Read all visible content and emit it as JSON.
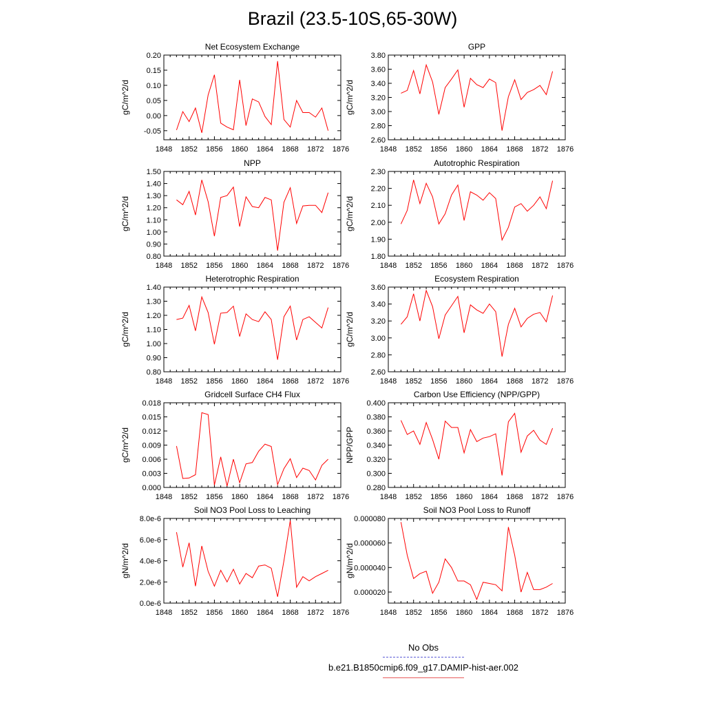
{
  "title": "Brazil (23.5-10S,65-30W)",
  "line_color": "#ff0000",
  "chart_data": [
    {
      "type": "line",
      "title": "Net Ecosystem Exchange",
      "ylabel": "gC/m^2/d",
      "xlim": [
        1848,
        1876
      ],
      "ylim": [
        -0.08,
        0.2
      ],
      "xticks": [
        "1848",
        "1852",
        "1856",
        "1860",
        "1864",
        "1868",
        "1872",
        "1876"
      ],
      "yticks": [
        "-0.05",
        "0.00",
        "0.05",
        "0.10",
        "0.15",
        "0.20"
      ],
      "ytick_values": [
        -0.05,
        0.0,
        0.05,
        0.1,
        0.15,
        0.2
      ],
      "x": [
        1850,
        1851,
        1852,
        1853,
        1854,
        1855,
        1856,
        1857,
        1858,
        1859,
        1860,
        1861,
        1862,
        1863,
        1864,
        1865,
        1866,
        1867,
        1868,
        1869,
        1870,
        1871,
        1872,
        1873,
        1874
      ],
      "values": [
        -0.048,
        0.013,
        -0.02,
        0.025,
        -0.057,
        0.068,
        0.135,
        -0.025,
        -0.038,
        -0.047,
        0.118,
        -0.033,
        0.055,
        0.045,
        -0.003,
        -0.03,
        0.18,
        -0.013,
        -0.038,
        0.05,
        0.01,
        0.01,
        -0.005,
        0.025,
        -0.05
      ]
    },
    {
      "type": "line",
      "title": "GPP",
      "ylabel": "gC/m^2/d",
      "xlim": [
        1848,
        1876
      ],
      "ylim": [
        2.6,
        3.8
      ],
      "xticks": [
        "1848",
        "1852",
        "1856",
        "1860",
        "1864",
        "1868",
        "1872",
        "1876"
      ],
      "yticks": [
        "2.60",
        "2.80",
        "3.00",
        "3.20",
        "3.40",
        "3.60",
        "3.80"
      ],
      "ytick_values": [
        2.6,
        2.8,
        3.0,
        3.2,
        3.4,
        3.6,
        3.8
      ],
      "x": [
        1850,
        1851,
        1852,
        1853,
        1854,
        1855,
        1856,
        1857,
        1858,
        1859,
        1860,
        1861,
        1862,
        1863,
        1864,
        1865,
        1866,
        1867,
        1868,
        1869,
        1870,
        1871,
        1872,
        1873,
        1874
      ],
      "values": [
        3.26,
        3.3,
        3.58,
        3.25,
        3.66,
        3.42,
        2.96,
        3.34,
        3.46,
        3.59,
        3.06,
        3.47,
        3.38,
        3.34,
        3.46,
        3.41,
        2.73,
        3.21,
        3.45,
        3.17,
        3.27,
        3.31,
        3.37,
        3.24,
        3.57
      ]
    },
    {
      "type": "line",
      "title": "NPP",
      "ylabel": "gC/m^2/d",
      "xlim": [
        1848,
        1876
      ],
      "ylim": [
        0.8,
        1.5
      ],
      "xticks": [
        "1848",
        "1852",
        "1856",
        "1860",
        "1864",
        "1868",
        "1872",
        "1876"
      ],
      "yticks": [
        "0.80",
        "0.90",
        "1.00",
        "1.10",
        "1.20",
        "1.30",
        "1.40",
        "1.50"
      ],
      "ytick_values": [
        0.8,
        0.9,
        1.0,
        1.1,
        1.2,
        1.3,
        1.4,
        1.5
      ],
      "x": [
        1850,
        1851,
        1852,
        1853,
        1854,
        1855,
        1856,
        1857,
        1858,
        1859,
        1860,
        1861,
        1862,
        1863,
        1864,
        1865,
        1866,
        1867,
        1868,
        1869,
        1870,
        1871,
        1872,
        1873,
        1874
      ],
      "values": [
        1.265,
        1.225,
        1.335,
        1.14,
        1.43,
        1.25,
        0.965,
        1.285,
        1.3,
        1.37,
        1.045,
        1.29,
        1.21,
        1.2,
        1.285,
        1.265,
        0.845,
        1.245,
        1.365,
        1.07,
        1.215,
        1.22,
        1.22,
        1.16,
        1.325
      ]
    },
    {
      "type": "line",
      "title": "Autotrophic Respiration",
      "ylabel": "gC/m^2/d",
      "xlim": [
        1848,
        1876
      ],
      "ylim": [
        1.8,
        2.3
      ],
      "xticks": [
        "1848",
        "1852",
        "1856",
        "1860",
        "1864",
        "1868",
        "1872",
        "1876"
      ],
      "yticks": [
        "1.80",
        "1.90",
        "2.00",
        "2.10",
        "2.20",
        "2.30"
      ],
      "ytick_values": [
        1.8,
        1.9,
        2.0,
        2.1,
        2.2,
        2.3
      ],
      "x": [
        1850,
        1851,
        1852,
        1853,
        1854,
        1855,
        1856,
        1857,
        1858,
        1859,
        1860,
        1861,
        1862,
        1863,
        1864,
        1865,
        1866,
        1867,
        1868,
        1869,
        1870,
        1871,
        1872,
        1873,
        1874
      ],
      "values": [
        1.99,
        2.07,
        2.25,
        2.11,
        2.23,
        2.15,
        1.99,
        2.05,
        2.16,
        2.22,
        2.01,
        2.18,
        2.16,
        2.13,
        2.175,
        2.14,
        1.895,
        1.97,
        2.09,
        2.11,
        2.065,
        2.1,
        2.15,
        2.08,
        2.245
      ]
    },
    {
      "type": "line",
      "title": "Heterotrophic Respiration",
      "ylabel": "gC/m^2/d",
      "xlim": [
        1848,
        1876
      ],
      "ylim": [
        0.8,
        1.4
      ],
      "xticks": [
        "1848",
        "1852",
        "1856",
        "1860",
        "1864",
        "1868",
        "1872",
        "1876"
      ],
      "yticks": [
        "0.80",
        "0.90",
        "1.00",
        "1.10",
        "1.20",
        "1.30",
        "1.40"
      ],
      "ytick_values": [
        0.8,
        0.9,
        1.0,
        1.1,
        1.2,
        1.3,
        1.4
      ],
      "x": [
        1850,
        1851,
        1852,
        1853,
        1854,
        1855,
        1856,
        1857,
        1858,
        1859,
        1860,
        1861,
        1862,
        1863,
        1864,
        1865,
        1866,
        1867,
        1868,
        1869,
        1870,
        1871,
        1872,
        1873,
        1874
      ],
      "values": [
        1.17,
        1.18,
        1.27,
        1.09,
        1.33,
        1.22,
        0.995,
        1.215,
        1.22,
        1.265,
        1.05,
        1.21,
        1.17,
        1.155,
        1.225,
        1.17,
        0.885,
        1.19,
        1.265,
        1.025,
        1.17,
        1.19,
        1.15,
        1.11,
        1.255
      ]
    },
    {
      "type": "line",
      "title": "Ecosystem Respiration",
      "ylabel": "gC/m^2/d",
      "xlim": [
        1848,
        1876
      ],
      "ylim": [
        2.6,
        3.6
      ],
      "xticks": [
        "1848",
        "1852",
        "1856",
        "1860",
        "1864",
        "1868",
        "1872",
        "1876"
      ],
      "yticks": [
        "2.60",
        "2.80",
        "3.00",
        "3.20",
        "3.40",
        "3.60"
      ],
      "ytick_values": [
        2.6,
        2.8,
        3.0,
        3.2,
        3.4,
        3.6
      ],
      "x": [
        1850,
        1851,
        1852,
        1853,
        1854,
        1855,
        1856,
        1857,
        1858,
        1859,
        1860,
        1861,
        1862,
        1863,
        1864,
        1865,
        1866,
        1867,
        1868,
        1869,
        1870,
        1871,
        1872,
        1873,
        1874
      ],
      "values": [
        3.16,
        3.25,
        3.52,
        3.2,
        3.56,
        3.37,
        2.99,
        3.27,
        3.38,
        3.49,
        3.06,
        3.39,
        3.33,
        3.29,
        3.4,
        3.31,
        2.78,
        3.16,
        3.35,
        3.13,
        3.23,
        3.28,
        3.3,
        3.19,
        3.5
      ]
    },
    {
      "type": "line",
      "title": "Gridcell Surface CH4 Flux",
      "ylabel": "gC/m^2/d",
      "xlim": [
        1848,
        1876
      ],
      "ylim": [
        0.0,
        0.018
      ],
      "xticks": [
        "1848",
        "1852",
        "1856",
        "1860",
        "1864",
        "1868",
        "1872",
        "1876"
      ],
      "yticks": [
        "0.000",
        "0.003",
        "0.006",
        "0.009",
        "0.012",
        "0.015",
        "0.018"
      ],
      "ytick_values": [
        0.0,
        0.003,
        0.006,
        0.009,
        0.012,
        0.015,
        0.018
      ],
      "x": [
        1850,
        1851,
        1852,
        1853,
        1854,
        1855,
        1856,
        1857,
        1858,
        1859,
        1860,
        1861,
        1862,
        1863,
        1864,
        1865,
        1866,
        1867,
        1868,
        1869,
        1870,
        1871,
        1872,
        1873,
        1874
      ],
      "values": [
        0.0088,
        0.0019,
        0.002,
        0.0027,
        0.0159,
        0.0155,
        0.0005,
        0.0065,
        0.0003,
        0.006,
        0.001,
        0.005,
        0.0053,
        0.0077,
        0.0092,
        0.0087,
        0.0006,
        0.004,
        0.0061,
        0.0021,
        0.0041,
        0.0036,
        0.0016,
        0.0047,
        0.006
      ]
    },
    {
      "type": "line",
      "title": "Carbon Use Efficiency (NPP/GPP)",
      "ylabel": "NPP/GPP",
      "xlim": [
        1848,
        1876
      ],
      "ylim": [
        0.28,
        0.4
      ],
      "xticks": [
        "1848",
        "1852",
        "1856",
        "1860",
        "1864",
        "1868",
        "1872",
        "1876"
      ],
      "yticks": [
        "0.280",
        "0.300",
        "0.320",
        "0.340",
        "0.360",
        "0.380",
        "0.400"
      ],
      "ytick_values": [
        0.28,
        0.3,
        0.32,
        0.34,
        0.36,
        0.38,
        0.4
      ],
      "x": [
        1850,
        1851,
        1852,
        1853,
        1854,
        1855,
        1856,
        1857,
        1858,
        1859,
        1860,
        1861,
        1862,
        1863,
        1864,
        1865,
        1866,
        1867,
        1868,
        1869,
        1870,
        1871,
        1872,
        1873,
        1874
      ],
      "values": [
        0.375,
        0.355,
        0.36,
        0.341,
        0.372,
        0.348,
        0.32,
        0.374,
        0.365,
        0.365,
        0.329,
        0.362,
        0.345,
        0.35,
        0.352,
        0.356,
        0.297,
        0.373,
        0.385,
        0.33,
        0.353,
        0.361,
        0.347,
        0.341,
        0.364
      ]
    },
    {
      "type": "line",
      "title": "Soil NO3 Pool Loss to Leaching",
      "ylabel": "gN/m^2/d",
      "xlim": [
        1848,
        1876
      ],
      "ylim": [
        0.0,
        8e-06
      ],
      "xticks": [
        "1848",
        "1852",
        "1856",
        "1860",
        "1864",
        "1868",
        "1872",
        "1876"
      ],
      "yticks": [
        "0.0e-6",
        "2.0e-6",
        "4.0e-6",
        "6.0e-6",
        "8.0e-6"
      ],
      "ytick_values": [
        0.0,
        2e-06,
        4e-06,
        6e-06,
        8e-06
      ],
      "x": [
        1850,
        1851,
        1852,
        1853,
        1854,
        1855,
        1856,
        1857,
        1858,
        1859,
        1860,
        1861,
        1862,
        1863,
        1864,
        1865,
        1866,
        1867,
        1868,
        1869,
        1870,
        1871,
        1872,
        1873,
        1874
      ],
      "values": [
        6.7e-06,
        3.4e-06,
        5.7e-06,
        1.6e-06,
        5.4e-06,
        3e-06,
        1.6e-06,
        3.1e-06,
        2e-06,
        3.2e-06,
        1.8e-06,
        2.8e-06,
        2.4e-06,
        3.5e-06,
        3.6e-06,
        3.3e-06,
        6e-07,
        4e-06,
        7.8e-06,
        1.5e-06,
        2.5e-06,
        2.1e-06,
        2.5e-06,
        2.8e-06,
        3.1e-06
      ]
    },
    {
      "type": "line",
      "title": "Soil NO3 Pool Loss to Runoff",
      "ylabel": "gN/m^2/d",
      "xlim": [
        1848,
        1876
      ],
      "ylim": [
        1.1e-05,
        8e-05
      ],
      "xticks": [
        "1848",
        "1852",
        "1856",
        "1860",
        "1864",
        "1868",
        "1872",
        "1876"
      ],
      "yticks": [
        "0.000020",
        "0.000040",
        "0.000060",
        "0.000080"
      ],
      "ytick_values": [
        2e-05,
        4e-05,
        6e-05,
        8e-05
      ],
      "x": [
        1850,
        1851,
        1852,
        1853,
        1854,
        1855,
        1856,
        1857,
        1858,
        1859,
        1860,
        1861,
        1862,
        1863,
        1864,
        1865,
        1866,
        1867,
        1868,
        1869,
        1870,
        1871,
        1872,
        1873,
        1874
      ],
      "values": [
        7.7e-05,
        5e-05,
        3.1e-05,
        3.5e-05,
        3.7e-05,
        1.9e-05,
        2.8e-05,
        4.7e-05,
        4e-05,
        2.9e-05,
        2.9e-05,
        2.6e-05,
        1.4e-05,
        2.8e-05,
        2.7e-05,
        2.6e-05,
        2.1e-05,
        7.3e-05,
        5e-05,
        2e-05,
        3.6e-05,
        2.2e-05,
        2.2e-05,
        2.4e-05,
        2.7e-05
      ]
    }
  ],
  "legend": {
    "obs_label": "No Obs",
    "obs_color": "#5a5ad6",
    "case_label": "b.e21.B1850cmip6.f09_g17.DAMIP-hist-aer.002",
    "case_color": "#e85a5a"
  }
}
